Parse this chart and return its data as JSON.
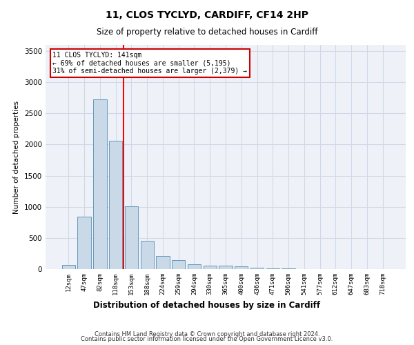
{
  "title1": "11, CLOS TYCLYD, CARDIFF, CF14 2HP",
  "title2": "Size of property relative to detached houses in Cardiff",
  "xlabel": "Distribution of detached houses by size in Cardiff",
  "ylabel": "Number of detached properties",
  "categories": [
    "12sqm",
    "47sqm",
    "82sqm",
    "118sqm",
    "153sqm",
    "188sqm",
    "224sqm",
    "259sqm",
    "294sqm",
    "330sqm",
    "365sqm",
    "400sqm",
    "436sqm",
    "471sqm",
    "506sqm",
    "541sqm",
    "577sqm",
    "612sqm",
    "647sqm",
    "683sqm",
    "718sqm"
  ],
  "values": [
    70,
    840,
    2720,
    2060,
    1010,
    450,
    210,
    140,
    80,
    60,
    50,
    45,
    25,
    10,
    8,
    5,
    3,
    2,
    1,
    1,
    1
  ],
  "bar_color": "#c9d9e8",
  "bar_edge_color": "#6699bb",
  "bar_edge_width": 0.7,
  "red_line_x": 3.5,
  "annotation_text": "11 CLOS TYCLYD: 141sqm\n← 69% of detached houses are smaller (5,195)\n31% of semi-detached houses are larger (2,379) →",
  "annotation_box_color": "#ffffff",
  "annotation_box_edge": "#cc0000",
  "ylim": [
    0,
    3600
  ],
  "yticks": [
    0,
    500,
    1000,
    1500,
    2000,
    2500,
    3000,
    3500
  ],
  "grid_color": "#d0d8e8",
  "background_color": "#eef2f8",
  "footer1": "Contains HM Land Registry data © Crown copyright and database right 2024.",
  "footer2": "Contains public sector information licensed under the Open Government Licence v3.0."
}
